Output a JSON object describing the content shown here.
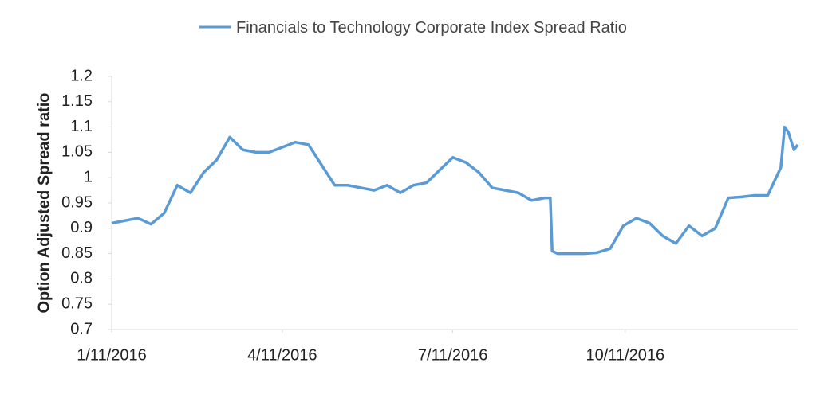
{
  "chart_data": {
    "type": "line",
    "y_label": "Option Adjusted Spread ratio",
    "x": [
      "2016-01-11",
      "2016-01-18",
      "2016-01-25",
      "2016-02-01",
      "2016-02-08",
      "2016-02-15",
      "2016-02-22",
      "2016-02-29",
      "2016-03-07",
      "2016-03-14",
      "2016-03-21",
      "2016-03-28",
      "2016-04-04",
      "2016-04-11",
      "2016-04-18",
      "2016-04-25",
      "2016-05-02",
      "2016-05-09",
      "2016-05-16",
      "2016-05-23",
      "2016-05-30",
      "2016-06-06",
      "2016-06-13",
      "2016-06-20",
      "2016-06-27",
      "2016-07-04",
      "2016-07-11",
      "2016-07-18",
      "2016-07-25",
      "2016-08-01",
      "2016-08-08",
      "2016-08-15",
      "2016-08-22",
      "2016-08-29",
      "2016-09-01",
      "2016-09-02",
      "2016-09-05",
      "2016-09-12",
      "2016-09-19",
      "2016-09-26",
      "2016-10-03",
      "2016-10-10",
      "2016-10-17",
      "2016-10-24",
      "2016-10-31",
      "2016-11-07",
      "2016-11-14",
      "2016-11-21",
      "2016-11-28",
      "2016-12-05",
      "2016-12-12",
      "2016-12-19",
      "2016-12-26",
      "2017-01-02",
      "2017-01-04",
      "2017-01-06",
      "2017-01-09",
      "2017-01-11"
    ],
    "series": [
      {
        "name": "Financials to Technology Corporate Index Spread Ratio",
        "color": "#5b9bd5",
        "values": [
          0.91,
          0.915,
          0.92,
          0.908,
          0.93,
          0.985,
          0.97,
          1.01,
          1.035,
          1.08,
          1.055,
          1.05,
          1.05,
          1.06,
          1.07,
          1.065,
          1.025,
          0.985,
          0.985,
          0.98,
          0.975,
          0.985,
          0.97,
          0.985,
          0.99,
          1.015,
          1.04,
          1.03,
          1.01,
          0.98,
          0.975,
          0.97,
          0.955,
          0.96,
          0.96,
          0.855,
          0.85,
          0.85,
          0.85,
          0.852,
          0.86,
          0.905,
          0.92,
          0.91,
          0.885,
          0.87,
          0.905,
          0.885,
          0.9,
          0.96,
          0.962,
          0.965,
          0.965,
          1.02,
          1.1,
          1.09,
          1.055,
          1.065
        ]
      }
    ],
    "xlim": [
      "2016-01-11",
      "2017-01-11"
    ],
    "xticks": [
      {
        "value": "2016-01-11",
        "label": "1/11/2016"
      },
      {
        "value": "2016-04-11",
        "label": "4/11/2016"
      },
      {
        "value": "2016-07-11",
        "label": "7/11/2016"
      },
      {
        "value": "2016-10-11",
        "label": "10/11/2016"
      }
    ],
    "ylim": [
      0.7,
      1.2
    ],
    "yticks": [
      0.7,
      0.75,
      0.8,
      0.85,
      0.9,
      0.95,
      1,
      1.05,
      1.1,
      1.15,
      1.2
    ],
    "grid": false,
    "legend": "top"
  }
}
